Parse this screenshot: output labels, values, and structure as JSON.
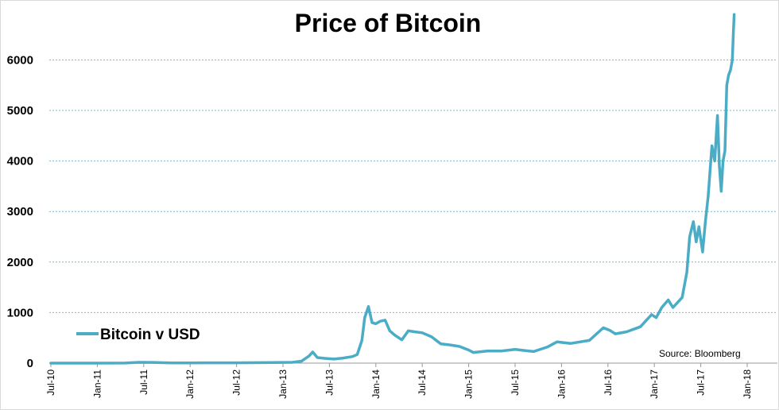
{
  "chart_data": {
    "type": "line",
    "title": "Price of Bitcoin",
    "xlabel": "",
    "ylabel": "",
    "ylim": [
      0,
      7000
    ],
    "yticks": [
      0,
      1000,
      2000,
      3000,
      4000,
      5000,
      6000
    ],
    "ytick_labels": [
      "0",
      "1000",
      "2000",
      "3000",
      "4000",
      "5000",
      "6000"
    ],
    "xlim": [
      2010.5,
      2018.0
    ],
    "xtick_values": [
      2010.5,
      2011.0,
      2011.5,
      2012.0,
      2012.5,
      2013.0,
      2013.5,
      2014.0,
      2014.5,
      2015.0,
      2015.5,
      2016.0,
      2016.5,
      2017.0,
      2017.5,
      2018.0
    ],
    "xtick_labels": [
      "Jul-10",
      "Jan-11",
      "Jul-11",
      "Jan-12",
      "Jul-12",
      "Jan-13",
      "Jul-13",
      "Jan-14",
      "Jul-14",
      "Jan-15",
      "Jul-15",
      "Jan-16",
      "Jul-16",
      "Jan-17",
      "Jul-17",
      "Jan-18"
    ],
    "grid": "horizontal dotted",
    "legend_position": "bottom-left",
    "source": "Source:  Bloomberg",
    "series": [
      {
        "name": "Bitcoin v USD",
        "color": "#4bacc6",
        "x": [
          2010.5,
          2010.9,
          2011.3,
          2011.45,
          2011.6,
          2011.8,
          2012.0,
          2012.5,
          2012.9,
          2013.1,
          2013.2,
          2013.28,
          2013.32,
          2013.37,
          2013.45,
          2013.55,
          2013.65,
          2013.75,
          2013.8,
          2013.85,
          2013.88,
          2013.92,
          2013.96,
          2014.0,
          2014.05,
          2014.1,
          2014.15,
          2014.2,
          2014.28,
          2014.35,
          2014.42,
          2014.5,
          2014.6,
          2014.7,
          2014.8,
          2014.9,
          2015.0,
          2015.05,
          2015.2,
          2015.35,
          2015.5,
          2015.6,
          2015.7,
          2015.85,
          2015.95,
          2016.1,
          2016.3,
          2016.45,
          2016.52,
          2016.58,
          2016.7,
          2016.85,
          2016.97,
          2017.02,
          2017.08,
          2017.15,
          2017.2,
          2017.25,
          2017.3,
          2017.35,
          2017.38,
          2017.42,
          2017.45,
          2017.48,
          2017.52,
          2017.55,
          2017.58,
          2017.62,
          2017.65,
          2017.68,
          2017.7,
          2017.72,
          2017.74,
          2017.76,
          2017.78,
          2017.8,
          2017.82,
          2017.84,
          2017.85,
          2017.86
        ],
        "values": [
          0.1,
          0.3,
          1,
          15,
          14,
          4,
          5,
          7,
          13,
          16,
          40,
          140,
          220,
          110,
          95,
          80,
          100,
          130,
          170,
          450,
          900,
          1120,
          800,
          780,
          830,
          850,
          640,
          560,
          460,
          640,
          620,
          600,
          520,
          380,
          360,
          330,
          260,
          210,
          240,
          240,
          270,
          250,
          230,
          320,
          420,
          390,
          450,
          700,
          650,
          580,
          620,
          720,
          960,
          900,
          1100,
          1250,
          1100,
          1200,
          1300,
          1800,
          2500,
          2800,
          2400,
          2700,
          2200,
          2800,
          3300,
          4300,
          4000,
          4900,
          3900,
          3400,
          4000,
          4200,
          5500,
          5700,
          5800,
          6000,
          6500,
          6900
        ]
      }
    ]
  }
}
